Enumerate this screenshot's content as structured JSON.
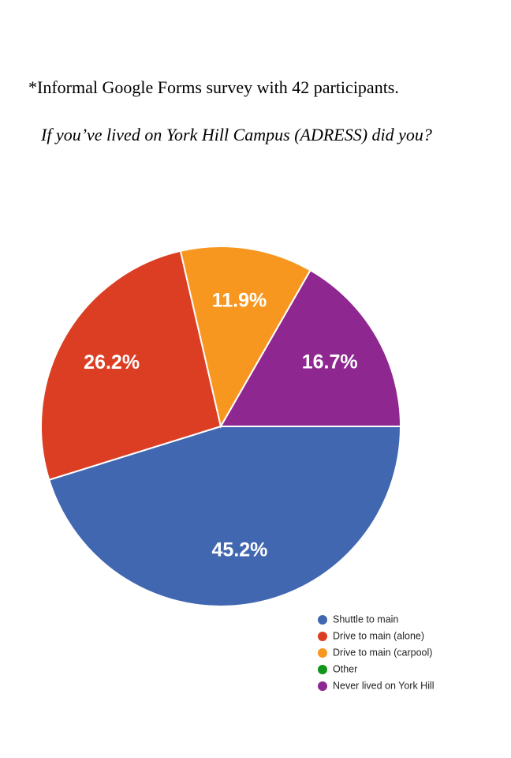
{
  "chart_data": {
    "type": "pie",
    "title": "*Informal Google Forms survey with 42 participants.",
    "subtitle": "If  you’ve lived on York Hill Campus (ADRESS) did you?",
    "categories": [
      "Shuttle to main",
      "Drive to main (alone)",
      "Drive to main (carpool)",
      "Other",
      "Never lived on York Hill"
    ],
    "values": [
      45.2,
      26.2,
      11.9,
      0,
      16.7
    ],
    "value_labels": [
      "45.2%",
      "26.2%",
      "11.9%",
      null,
      "16.7%"
    ],
    "colors": [
      "#4267b1",
      "#db3e23",
      "#f7971f",
      "#109618",
      "#8f2790"
    ],
    "legend": "bottom-right"
  }
}
